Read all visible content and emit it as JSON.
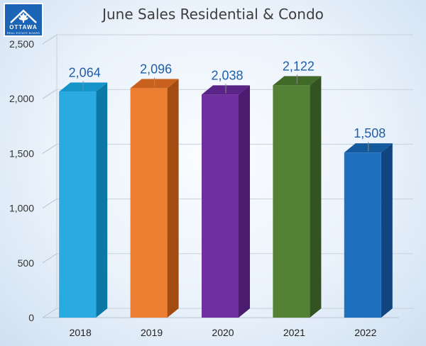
{
  "logo": {
    "main": "OTTAWA",
    "sub": "REAL ESTATE BOARD"
  },
  "chart_data": {
    "type": "bar",
    "title": "June Sales Residential & Condo",
    "xlabel": "",
    "ylabel": "",
    "categories": [
      "2018",
      "2019",
      "2020",
      "2021",
      "2022"
    ],
    "values": [
      2064,
      2096,
      2038,
      2122,
      1508
    ],
    "value_labels": [
      "2,064",
      "2,096",
      "2,038",
      "2,122",
      "1,508"
    ],
    "ylim": [
      0,
      2500
    ],
    "yticks": [
      0,
      500,
      1000,
      1500,
      2000,
      2500
    ],
    "ytick_labels": [
      "0",
      "500",
      "1,000",
      "1,500",
      "2,000",
      "2,500"
    ],
    "grid": true,
    "legend": "none",
    "colors": [
      "#29abe2",
      "#ed7d31",
      "#7030a0",
      "#548235",
      "#1f6fbf"
    ],
    "side_colors": [
      "#0b78a6",
      "#a24c12",
      "#4a1b6e",
      "#345322",
      "#10457f"
    ],
    "top_colors": [
      "#1494c9",
      "#c8611d",
      "#5a2387",
      "#416a29",
      "#165a9e"
    ],
    "label_color": "#1f5fa8"
  }
}
